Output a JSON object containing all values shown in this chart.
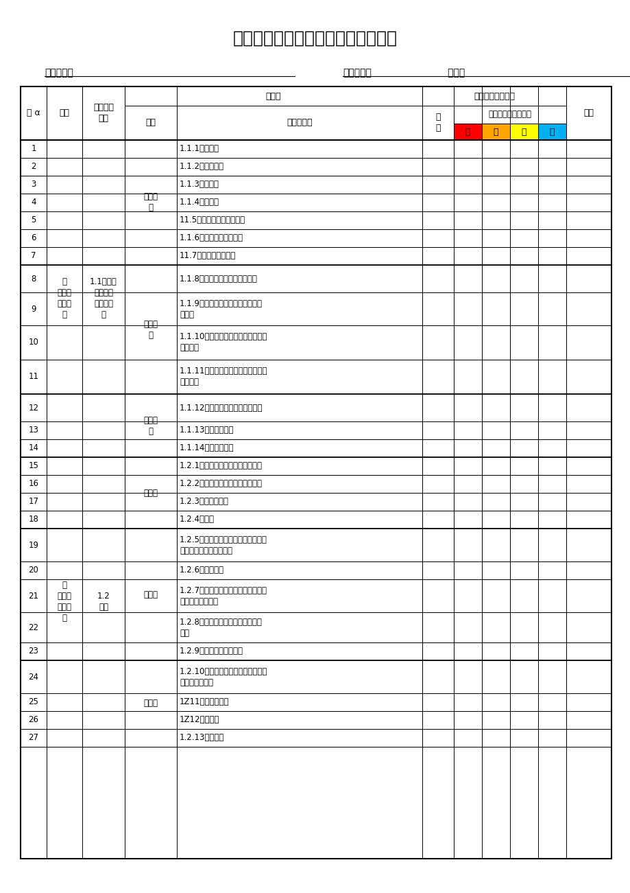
{
  "title": "《企业安全生产风险点识别汇总表》",
  "company_label": "企业名称：",
  "date_label": "填表日期：",
  "date_value": "   年月日",
  "bg_color": "#ffffff",
  "color_red": "#ff0000",
  "color_orange": "#ffa500",
  "color_yellow": "#ffff00",
  "color_blue": "#00b0f0",
  "rows": [
    {
      "seq": "1",
      "desc": "1.1.1强度不够"
    },
    {
      "seq": "2",
      "desc": "1.1.2稳定性不好"
    },
    {
      "seq": "3",
      "desc": "1.1.3密封不良"
    },
    {
      "seq": "4",
      "desc": "1.1.4应力集中"
    },
    {
      "seq": "5",
      "desc": "11.5外型缺陷、外露运动件"
    },
    {
      "seq": "6",
      "desc": "1.1.6缺乏必要的连接装置"
    },
    {
      "seq": "7",
      "desc": "11.7构成的材料不合适"
    },
    {
      "seq": "8",
      "desc": "1.1.8没有安全防护装置或不完善"
    },
    {
      "seq": "9",
      "desc": "1.1.9没有接地、绝缘或接地、绝缘\n不充分"
    },
    {
      "seq": "10",
      "desc": "1.1.10缺乏个体防护装置或个体防护\n装置不良"
    },
    {
      "seq": "11",
      "desc": "1.1.11没有指定使用或禁止使用某用\n品、用具"
    },
    {
      "seq": "12",
      "desc": "1.1.12废旧、疲劳、过期而不更新"
    },
    {
      "seq": "13",
      "desc": "1.1.13出故障未处理"
    },
    {
      "seq": "14",
      "desc": "1.1.14平时维护不善"
    },
    {
      "seq": "15",
      "desc": "1.2.1高温物（固体、气体、液体）"
    },
    {
      "seq": "16",
      "desc": "1.2.2低温物（固体、气体、液体）"
    },
    {
      "seq": "17",
      "desc": "1.2.3粉尘与气溶胶"
    },
    {
      "seq": "18",
      "desc": "1.2.4运动物"
    },
    {
      "seq": "19",
      "desc": "1.2.5易燃易爆性物质（气体、液体、\n固体、粉尘与气溶胶等）"
    },
    {
      "seq": "20",
      "desc": "1.2.6自燃性物质"
    },
    {
      "seq": "21",
      "desc": "1.2.7有毒物质（气体、液体、固体、\n粉尘与气溶胶等）"
    },
    {
      "seq": "22",
      "desc": "1.2.8腔蚀性物质（气体、液体、固\n体）"
    },
    {
      "seq": "23",
      "desc": "1.2.9其他化学性危险因素"
    },
    {
      "seq": "24",
      "desc": "1.2.10致病微生物（细菌、病毒、其\n他致病微生物）"
    },
    {
      "seq": "25",
      "desc": "1Z11传染病媒介物"
    },
    {
      "seq": "26",
      "desc": "1Z12致害动物"
    },
    {
      "seq": "27",
      "desc": "1.2.13致害植物"
    }
  ]
}
